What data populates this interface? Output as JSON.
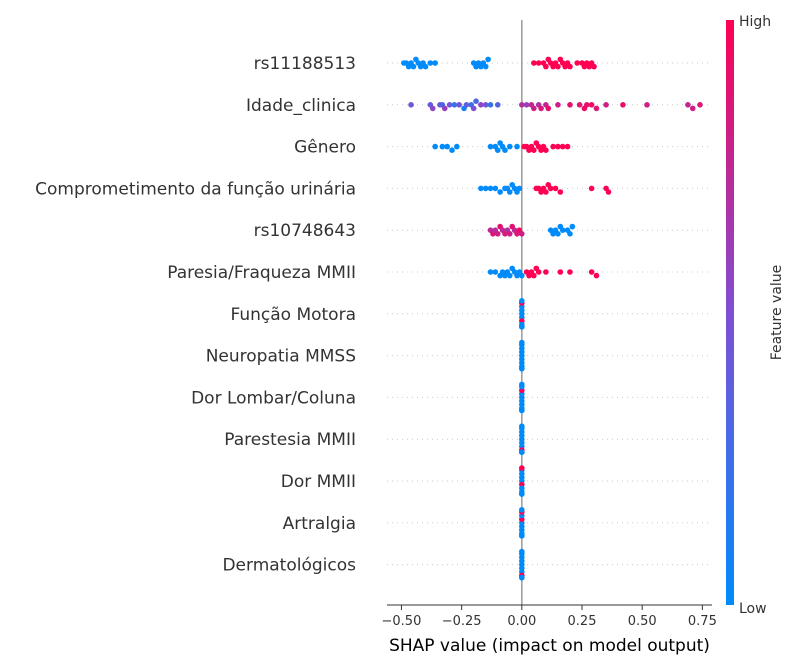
{
  "chart_data": {
    "type": "scatter",
    "title": "",
    "xlabel": "SHAP value (impact on model output)",
    "ylabel": "",
    "xlim": [
      -0.56,
      0.79
    ],
    "xticks": [
      -0.5,
      -0.25,
      0.0,
      0.25,
      0.5,
      0.75
    ],
    "xtick_labels": [
      "−0.50",
      "−0.25",
      "0.00",
      "0.25",
      "0.50",
      "0.75"
    ],
    "grid": false,
    "colorbar": {
      "label": "Feature value",
      "high_label": "High",
      "low_label": "Low",
      "colors": [
        "#008bfb",
        "#7f4fd4",
        "#ff0052"
      ]
    },
    "features": [
      {
        "name": "rs11188513",
        "points": [
          {
            "x": -0.49,
            "v": 0
          },
          {
            "x": -0.48,
            "v": 0
          },
          {
            "x": -0.47,
            "v": 0
          },
          {
            "x": -0.46,
            "v": 0
          },
          {
            "x": -0.45,
            "v": 0
          },
          {
            "x": -0.44,
            "v": 0
          },
          {
            "x": -0.43,
            "v": 0
          },
          {
            "x": -0.42,
            "v": 0
          },
          {
            "x": -0.41,
            "v": 0
          },
          {
            "x": -0.4,
            "v": 0
          },
          {
            "x": -0.38,
            "v": 0
          },
          {
            "x": -0.36,
            "v": 0
          },
          {
            "x": -0.2,
            "v": 0
          },
          {
            "x": -0.19,
            "v": 0
          },
          {
            "x": -0.18,
            "v": 0
          },
          {
            "x": -0.17,
            "v": 0
          },
          {
            "x": -0.16,
            "v": 0
          },
          {
            "x": -0.15,
            "v": 0
          },
          {
            "x": -0.14,
            "v": 0
          },
          {
            "x": 0.05,
            "v": 1
          },
          {
            "x": 0.07,
            "v": 1
          },
          {
            "x": 0.09,
            "v": 1
          },
          {
            "x": 0.1,
            "v": 1
          },
          {
            "x": 0.11,
            "v": 1
          },
          {
            "x": 0.12,
            "v": 1
          },
          {
            "x": 0.13,
            "v": 1
          },
          {
            "x": 0.14,
            "v": 1
          },
          {
            "x": 0.15,
            "v": 1
          },
          {
            "x": 0.16,
            "v": 1
          },
          {
            "x": 0.17,
            "v": 1
          },
          {
            "x": 0.18,
            "v": 1
          },
          {
            "x": 0.19,
            "v": 1
          },
          {
            "x": 0.2,
            "v": 1
          },
          {
            "x": 0.23,
            "v": 1
          },
          {
            "x": 0.25,
            "v": 1
          },
          {
            "x": 0.26,
            "v": 1
          },
          {
            "x": 0.27,
            "v": 1
          },
          {
            "x": 0.28,
            "v": 1
          },
          {
            "x": 0.29,
            "v": 1
          },
          {
            "x": 0.3,
            "v": 1
          }
        ]
      },
      {
        "name": "Idade_clinica",
        "points": [
          {
            "x": -0.46,
            "v": 0.45
          },
          {
            "x": -0.38,
            "v": 0.4
          },
          {
            "x": -0.37,
            "v": 0.55
          },
          {
            "x": -0.34,
            "v": 0.45
          },
          {
            "x": -0.33,
            "v": 0.3
          },
          {
            "x": -0.32,
            "v": 0.6
          },
          {
            "x": -0.3,
            "v": 0.45
          },
          {
            "x": -0.28,
            "v": 0.2
          },
          {
            "x": -0.26,
            "v": 0.45
          },
          {
            "x": -0.24,
            "v": 0.1
          },
          {
            "x": -0.23,
            "v": 0.35
          },
          {
            "x": -0.21,
            "v": 0.25
          },
          {
            "x": -0.2,
            "v": 0.5
          },
          {
            "x": -0.19,
            "v": 0.3
          },
          {
            "x": -0.17,
            "v": 0.55
          },
          {
            "x": -0.15,
            "v": 0.45
          },
          {
            "x": -0.13,
            "v": 0.2
          },
          {
            "x": -0.1,
            "v": 0.35
          },
          {
            "x": 0.0,
            "v": 0.7
          },
          {
            "x": 0.02,
            "v": 0.6
          },
          {
            "x": 0.04,
            "v": 0.75
          },
          {
            "x": 0.05,
            "v": 0.8
          },
          {
            "x": 0.07,
            "v": 0.7
          },
          {
            "x": 0.08,
            "v": 0.85
          },
          {
            "x": 0.1,
            "v": 0.75
          },
          {
            "x": 0.11,
            "v": 0.9
          },
          {
            "x": 0.15,
            "v": 0.8
          },
          {
            "x": 0.2,
            "v": 0.9
          },
          {
            "x": 0.24,
            "v": 0.85
          },
          {
            "x": 0.26,
            "v": 0.95
          },
          {
            "x": 0.27,
            "v": 0.9
          },
          {
            "x": 0.29,
            "v": 0.95
          },
          {
            "x": 0.31,
            "v": 0.85
          },
          {
            "x": 0.35,
            "v": 0.8
          },
          {
            "x": 0.42,
            "v": 0.9
          },
          {
            "x": 0.52,
            "v": 0.8
          },
          {
            "x": 0.69,
            "v": 0.75
          },
          {
            "x": 0.71,
            "v": 0.8
          },
          {
            "x": 0.74,
            "v": 0.85
          }
        ]
      },
      {
        "name": "Gênero",
        "points": [
          {
            "x": -0.36,
            "v": 0
          },
          {
            "x": -0.33,
            "v": 0
          },
          {
            "x": -0.31,
            "v": 0
          },
          {
            "x": -0.29,
            "v": 0
          },
          {
            "x": -0.27,
            "v": 0
          },
          {
            "x": -0.13,
            "v": 0
          },
          {
            "x": -0.11,
            "v": 0
          },
          {
            "x": -0.1,
            "v": 0
          },
          {
            "x": -0.09,
            "v": 0
          },
          {
            "x": -0.08,
            "v": 0
          },
          {
            "x": -0.07,
            "v": 0
          },
          {
            "x": -0.05,
            "v": 0
          },
          {
            "x": -0.02,
            "v": 0
          },
          {
            "x": 0.01,
            "v": 1
          },
          {
            "x": 0.02,
            "v": 1
          },
          {
            "x": 0.03,
            "v": 1
          },
          {
            "x": 0.04,
            "v": 1
          },
          {
            "x": 0.05,
            "v": 1
          },
          {
            "x": 0.06,
            "v": 1
          },
          {
            "x": 0.07,
            "v": 1
          },
          {
            "x": 0.08,
            "v": 1
          },
          {
            "x": 0.09,
            "v": 1
          },
          {
            "x": 0.1,
            "v": 1
          },
          {
            "x": 0.13,
            "v": 1
          },
          {
            "x": 0.15,
            "v": 1
          },
          {
            "x": 0.17,
            "v": 1
          },
          {
            "x": 0.19,
            "v": 1
          }
        ]
      },
      {
        "name": "Comprometimento da função urinária",
        "points": [
          {
            "x": -0.17,
            "v": 0
          },
          {
            "x": -0.15,
            "v": 0
          },
          {
            "x": -0.13,
            "v": 0
          },
          {
            "x": -0.11,
            "v": 0
          },
          {
            "x": -0.09,
            "v": 0
          },
          {
            "x": -0.07,
            "v": 0
          },
          {
            "x": -0.06,
            "v": 0
          },
          {
            "x": -0.05,
            "v": 0
          },
          {
            "x": -0.04,
            "v": 0
          },
          {
            "x": -0.03,
            "v": 0
          },
          {
            "x": -0.02,
            "v": 0
          },
          {
            "x": -0.01,
            "v": 0
          },
          {
            "x": 0.06,
            "v": 1
          },
          {
            "x": 0.07,
            "v": 1
          },
          {
            "x": 0.08,
            "v": 1
          },
          {
            "x": 0.09,
            "v": 1
          },
          {
            "x": 0.1,
            "v": 1
          },
          {
            "x": 0.11,
            "v": 1
          },
          {
            "x": 0.12,
            "v": 1
          },
          {
            "x": 0.14,
            "v": 1
          },
          {
            "x": 0.16,
            "v": 1
          },
          {
            "x": 0.29,
            "v": 1
          },
          {
            "x": 0.35,
            "v": 1
          },
          {
            "x": 0.36,
            "v": 1
          }
        ]
      },
      {
        "name": "rs10748643",
        "points": [
          {
            "x": -0.13,
            "v": 0.75
          },
          {
            "x": -0.12,
            "v": 0.85
          },
          {
            "x": -0.11,
            "v": 0.7
          },
          {
            "x": -0.1,
            "v": 0.8
          },
          {
            "x": -0.09,
            "v": 0.9
          },
          {
            "x": -0.08,
            "v": 0.75
          },
          {
            "x": -0.07,
            "v": 0.85
          },
          {
            "x": -0.06,
            "v": 0.7
          },
          {
            "x": -0.05,
            "v": 0.8
          },
          {
            "x": -0.04,
            "v": 0.9
          },
          {
            "x": -0.03,
            "v": 0.75
          },
          {
            "x": -0.02,
            "v": 0.85
          },
          {
            "x": -0.01,
            "v": 0.95
          },
          {
            "x": 0.0,
            "v": 0.8
          },
          {
            "x": 0.12,
            "v": 0
          },
          {
            "x": 0.13,
            "v": 0
          },
          {
            "x": 0.14,
            "v": 0
          },
          {
            "x": 0.15,
            "v": 0
          },
          {
            "x": 0.16,
            "v": 0
          },
          {
            "x": 0.17,
            "v": 0
          },
          {
            "x": 0.19,
            "v": 0
          },
          {
            "x": 0.2,
            "v": 0
          },
          {
            "x": 0.21,
            "v": 0
          }
        ]
      },
      {
        "name": "Paresia/Fraqueza MMII",
        "points": [
          {
            "x": -0.13,
            "v": 0
          },
          {
            "x": -0.11,
            "v": 0
          },
          {
            "x": -0.09,
            "v": 0
          },
          {
            "x": -0.08,
            "v": 0
          },
          {
            "x": -0.07,
            "v": 0
          },
          {
            "x": -0.06,
            "v": 0
          },
          {
            "x": -0.05,
            "v": 0
          },
          {
            "x": -0.04,
            "v": 0
          },
          {
            "x": -0.03,
            "v": 0
          },
          {
            "x": -0.02,
            "v": 0
          },
          {
            "x": -0.01,
            "v": 0
          },
          {
            "x": 0.0,
            "v": 0
          },
          {
            "x": 0.02,
            "v": 1
          },
          {
            "x": 0.03,
            "v": 1
          },
          {
            "x": 0.04,
            "v": 1
          },
          {
            "x": 0.05,
            "v": 1
          },
          {
            "x": 0.06,
            "v": 1
          },
          {
            "x": 0.07,
            "v": 1
          },
          {
            "x": 0.1,
            "v": 1
          },
          {
            "x": 0.16,
            "v": 1
          },
          {
            "x": 0.2,
            "v": 1
          },
          {
            "x": 0.29,
            "v": 1
          },
          {
            "x": 0.31,
            "v": 1
          }
        ]
      },
      {
        "name": "Função Motora",
        "points": [
          {
            "x": 0.0,
            "v": 0
          },
          {
            "x": 0.0,
            "v": 0
          },
          {
            "x": 0.0,
            "v": 0
          },
          {
            "x": 0.0,
            "v": 1
          },
          {
            "x": 0.0,
            "v": 0
          },
          {
            "x": 0.0,
            "v": 0
          },
          {
            "x": 0.0,
            "v": 1
          },
          {
            "x": 0.0,
            "v": 0
          },
          {
            "x": 0.0,
            "v": 0
          },
          {
            "x": 0.0,
            "v": 0
          }
        ]
      },
      {
        "name": "Neuropatia MMSS",
        "points": [
          {
            "x": 0.0,
            "v": 0
          },
          {
            "x": 0.0,
            "v": 0
          },
          {
            "x": 0.0,
            "v": 0
          },
          {
            "x": 0.0,
            "v": 0
          },
          {
            "x": 0.0,
            "v": 0
          },
          {
            "x": 0.0,
            "v": 0
          },
          {
            "x": 0.0,
            "v": 0
          },
          {
            "x": 0.0,
            "v": 0
          },
          {
            "x": 0.0,
            "v": 0
          },
          {
            "x": 0.0,
            "v": 0
          }
        ]
      },
      {
        "name": "Dor Lombar/Coluna",
        "points": [
          {
            "x": 0.0,
            "v": 0
          },
          {
            "x": 0.0,
            "v": 0
          },
          {
            "x": 0.0,
            "v": 0
          },
          {
            "x": 0.0,
            "v": 0
          },
          {
            "x": 0.0,
            "v": 1
          },
          {
            "x": 0.0,
            "v": 0
          },
          {
            "x": 0.0,
            "v": 0
          },
          {
            "x": 0.0,
            "v": 0
          },
          {
            "x": 0.0,
            "v": 0
          },
          {
            "x": 0.0,
            "v": 0
          }
        ]
      },
      {
        "name": "Parestesia MMII",
        "points": [
          {
            "x": 0.0,
            "v": 0
          },
          {
            "x": 0.0,
            "v": 0
          },
          {
            "x": 0.0,
            "v": 0
          },
          {
            "x": 0.0,
            "v": 0
          },
          {
            "x": 0.0,
            "v": 0
          },
          {
            "x": 0.0,
            "v": 1
          },
          {
            "x": 0.0,
            "v": 0
          },
          {
            "x": 0.0,
            "v": 0
          },
          {
            "x": 0.0,
            "v": 0
          },
          {
            "x": 0.0,
            "v": 0
          }
        ]
      },
      {
        "name": "Dor MMII",
        "points": [
          {
            "x": 0.0,
            "v": 0
          },
          {
            "x": 0.0,
            "v": 1
          },
          {
            "x": 0.0,
            "v": 0
          },
          {
            "x": 0.0,
            "v": 0
          },
          {
            "x": 0.0,
            "v": 0
          },
          {
            "x": 0.0,
            "v": 0
          },
          {
            "x": 0.0,
            "v": 0
          },
          {
            "x": 0.0,
            "v": 0
          },
          {
            "x": 0.0,
            "v": 1
          },
          {
            "x": 0.0,
            "v": 0
          }
        ]
      },
      {
        "name": "Artralgia",
        "points": [
          {
            "x": 0.0,
            "v": 0
          },
          {
            "x": 0.0,
            "v": 0
          },
          {
            "x": 0.0,
            "v": 1
          },
          {
            "x": 0.0,
            "v": 0
          },
          {
            "x": 0.0,
            "v": 0
          },
          {
            "x": 0.0,
            "v": 0
          },
          {
            "x": 0.0,
            "v": 1
          },
          {
            "x": 0.0,
            "v": 0
          },
          {
            "x": 0.0,
            "v": 0
          },
          {
            "x": 0.0,
            "v": 0
          }
        ]
      },
      {
        "name": "Dermatológicos",
        "points": [
          {
            "x": 0.0,
            "v": 0
          },
          {
            "x": 0.0,
            "v": 0
          },
          {
            "x": 0.0,
            "v": 0
          },
          {
            "x": 0.0,
            "v": 0
          },
          {
            "x": 0.0,
            "v": 0
          },
          {
            "x": 0.0,
            "v": 1
          },
          {
            "x": 0.0,
            "v": 0
          },
          {
            "x": 0.0,
            "v": 0
          },
          {
            "x": 0.0,
            "v": 0
          },
          {
            "x": 0.0,
            "v": 0
          }
        ]
      }
    ]
  }
}
